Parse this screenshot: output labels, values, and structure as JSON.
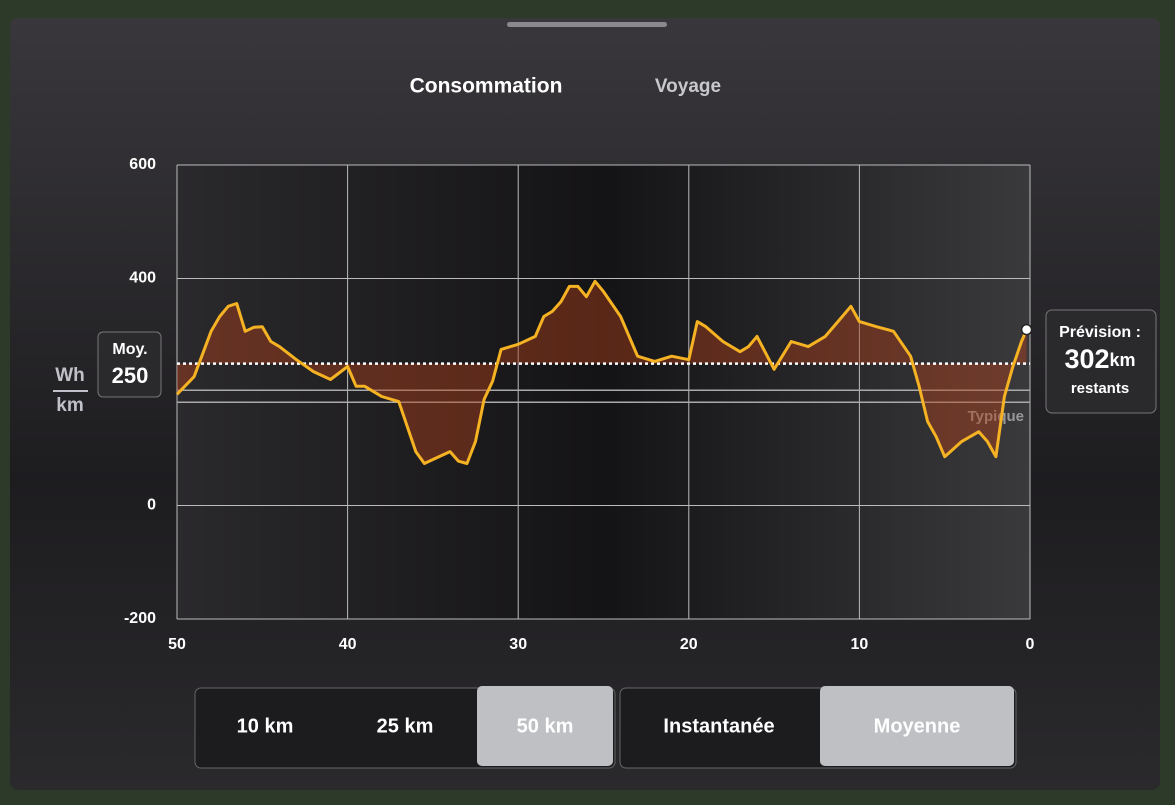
{
  "tabs": {
    "items": [
      "Consommation",
      "Voyage"
    ],
    "selected": 0
  },
  "chart_data": {
    "type": "line",
    "color": "#f5b324",
    "y_unit_top": "Wh",
    "y_unit_bottom": "km",
    "xlim": [
      50,
      0
    ],
    "xticks": [
      50,
      40,
      30,
      20,
      10,
      0
    ],
    "ylim": [
      -200,
      600
    ],
    "yticks": [
      -200,
      0,
      400,
      600
    ],
    "grid": true,
    "x": [
      50,
      49,
      48,
      47.5,
      47,
      46.5,
      46,
      45.5,
      45,
      44.5,
      44,
      43,
      42,
      41,
      40,
      39.5,
      39,
      38,
      37,
      36.5,
      36,
      35.5,
      35,
      34,
      33.5,
      33,
      32.5,
      32,
      31.5,
      31,
      30,
      29,
      28.5,
      28,
      27.5,
      27,
      26.5,
      26,
      25.5,
      25,
      24,
      23.5,
      23,
      22,
      21,
      20,
      19.5,
      19,
      18,
      17,
      16.5,
      16,
      15,
      14,
      13,
      12,
      11,
      10.5,
      10,
      9,
      8,
      7,
      6.5,
      6,
      5.5,
      5,
      4,
      3,
      2.5,
      2,
      1.5,
      1,
      0.5,
      0.2
    ],
    "values": [
      196,
      227,
      307,
      333,
      351,
      356,
      307,
      314,
      315,
      289,
      280,
      257,
      236,
      222,
      245,
      210,
      210,
      192,
      183,
      139,
      95,
      74,
      81,
      95,
      78,
      74,
      113,
      187,
      219,
      275,
      284,
      298,
      333,
      342,
      359,
      386,
      386,
      368,
      395,
      377,
      333,
      298,
      263,
      254,
      263,
      257,
      324,
      315,
      289,
      271,
      280,
      298,
      240,
      289,
      280,
      298,
      333,
      351,
      324,
      315,
      307,
      263,
      210,
      148,
      121,
      86,
      113,
      130,
      113,
      86,
      192,
      245,
      289,
      310
    ],
    "average": {
      "label": "Moy.",
      "value": 250
    },
    "typical": {
      "label": "Typique",
      "values": [
        182,
        203
      ]
    },
    "forecast": {
      "label": "Prévision :",
      "value": 302,
      "unit": "km",
      "note": "restants"
    }
  },
  "distance_buttons": {
    "items": [
      "10 km",
      "25 km",
      "50 km"
    ],
    "selected": 2
  },
  "mode_buttons": {
    "items": [
      "Instantanée",
      "Moyenne"
    ],
    "selected": 1
  }
}
